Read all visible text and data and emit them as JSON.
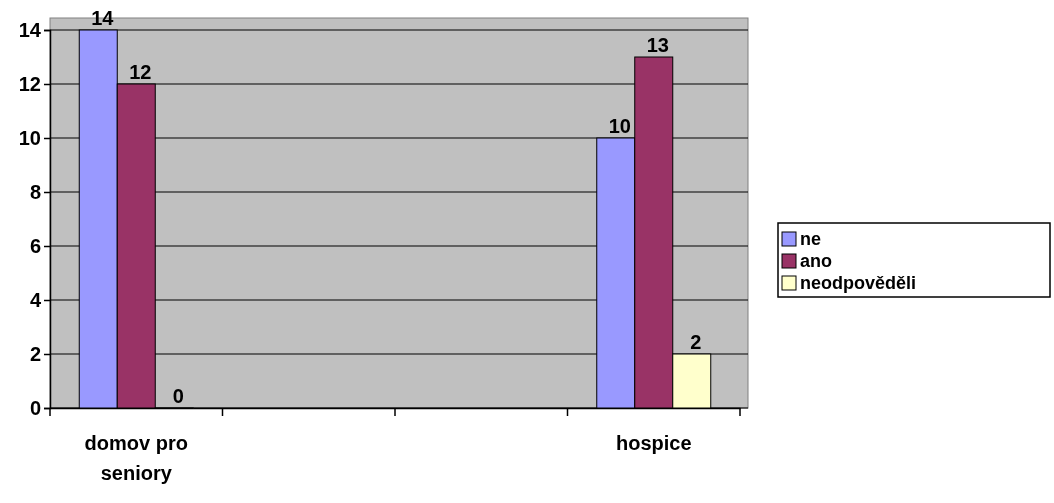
{
  "chart_data": {
    "type": "bar",
    "categories": [
      "domov pro seniory",
      null,
      null,
      "hospice"
    ],
    "series": [
      {
        "name": "ne",
        "color": "#9999ff",
        "values": [
          14,
          null,
          null,
          10
        ]
      },
      {
        "name": "ano",
        "color": "#993366",
        "values": [
          12,
          null,
          null,
          13
        ]
      },
      {
        "name": "neodpověděli",
        "color": "#ffffcc",
        "values": [
          0,
          null,
          null,
          2
        ]
      }
    ],
    "ylim": [
      0,
      14
    ],
    "yticks": [
      0,
      2,
      4,
      6,
      8,
      10,
      12,
      14
    ],
    "grid": "y",
    "legend": "right",
    "data_labels": true
  }
}
